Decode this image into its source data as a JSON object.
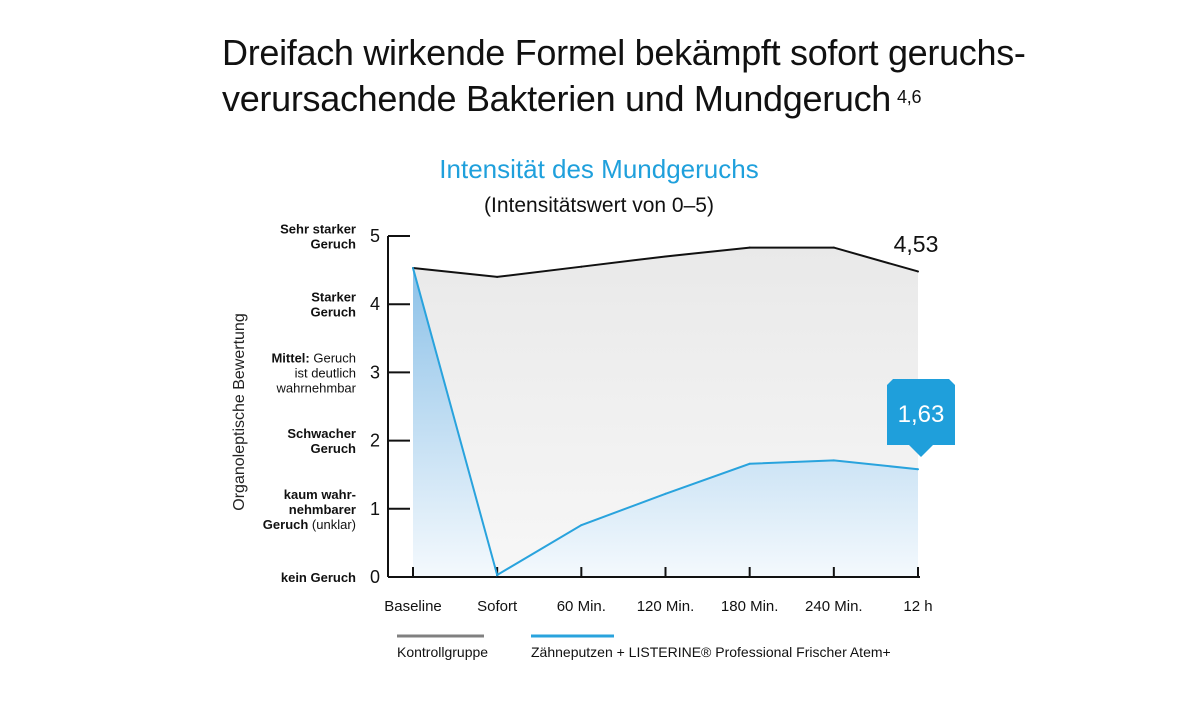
{
  "headline": {
    "line1": "Dreifach wirkende Formel bekämpft sofort geruchs-",
    "line2": "verursachende Bakterien und Mundgeruch",
    "sup": "4,6"
  },
  "chart_data": {
    "type": "area",
    "title": "Intensität des Mundgeruchs",
    "subtitle": "(Intensitätswert von 0–5)",
    "ylabel": "Organoleptische Bewertung",
    "xlabel": "",
    "ylim": [
      0,
      5
    ],
    "yticks": [
      "0",
      "1",
      "2",
      "3",
      "4",
      "5"
    ],
    "categories": [
      "Baseline",
      "Sofort",
      "60 Min.",
      "120 Min.",
      "180 Min.",
      "240 Min.",
      "12 h"
    ],
    "y_descriptors": [
      {
        "y": 5,
        "lines": [
          {
            "bold": "Sehr starker",
            "normal": ""
          },
          {
            "bold": "Geruch",
            "normal": ""
          }
        ]
      },
      {
        "y": 4,
        "lines": [
          {
            "bold": "Starker",
            "normal": ""
          },
          {
            "bold": "Geruch",
            "normal": ""
          }
        ]
      },
      {
        "y": 3,
        "lines": [
          {
            "bold": "Mittel:",
            "normal": " Geruch"
          },
          {
            "bold": "",
            "normal": "ist deutlich"
          },
          {
            "bold": "",
            "normal": "wahrnehmbar"
          }
        ]
      },
      {
        "y": 2,
        "lines": [
          {
            "bold": "Schwacher",
            "normal": ""
          },
          {
            "bold": "Geruch",
            "normal": ""
          }
        ]
      },
      {
        "y": 1,
        "lines": [
          {
            "bold": "kaum wahr-",
            "normal": ""
          },
          {
            "bold": "nehmbarer",
            "normal": ""
          },
          {
            "bold": "Geruch",
            "normal": " (unklar)"
          }
        ]
      },
      {
        "y": 0,
        "lines": [
          {
            "bold": "kein Geruch",
            "normal": ""
          }
        ]
      }
    ],
    "series": [
      {
        "name": "Kontrollgruppe",
        "color": "#111111",
        "legend_color": "#808080",
        "values": [
          4.53,
          4.4,
          4.55,
          4.7,
          4.83,
          4.83,
          4.48
        ]
      },
      {
        "name": "Zähneputzen + LISTERINE® Professional Frischer Atem+",
        "color": "#29a3dd",
        "legend_color": "#29a3dd",
        "values": [
          4.53,
          0.03,
          0.76,
          1.22,
          1.66,
          1.71,
          1.58
        ]
      }
    ],
    "annotations": [
      {
        "text": "4,53",
        "series": 0,
        "style": "plain"
      },
      {
        "text": "1,63",
        "series": 1,
        "style": "badge",
        "color": "#1f9fdb"
      }
    ]
  }
}
